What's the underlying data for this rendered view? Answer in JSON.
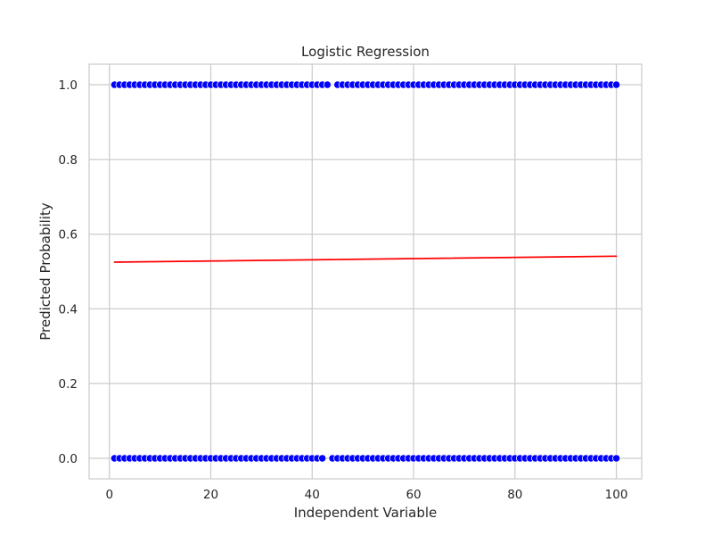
{
  "chart_data": {
    "type": "scatter",
    "title": "Logistic Regression",
    "xlabel": "Independent Variable",
    "ylabel": "Predicted Probability",
    "xlim": [
      -4,
      105
    ],
    "ylim": [
      -0.055,
      1.055
    ],
    "xticks": [
      0,
      20,
      40,
      60,
      80,
      100
    ],
    "xtick_labels": [
      "0",
      "20",
      "40",
      "60",
      "80",
      "100"
    ],
    "yticks": [
      0.0,
      0.2,
      0.4,
      0.6,
      0.8,
      1.0
    ],
    "ytick_labels": [
      "0.0",
      "0.2",
      "0.4",
      "0.6",
      "0.8",
      "1.0"
    ],
    "grid": true,
    "series": [
      {
        "type": "scatter",
        "color": "#0000ff",
        "points": [
          [
            1,
            0
          ],
          [
            1,
            1
          ],
          [
            2,
            0
          ],
          [
            2,
            1
          ],
          [
            3,
            0
          ],
          [
            3,
            1
          ],
          [
            4,
            0
          ],
          [
            4,
            1
          ],
          [
            5,
            0
          ],
          [
            5,
            1
          ],
          [
            6,
            0
          ],
          [
            6,
            1
          ],
          [
            7,
            0
          ],
          [
            7,
            1
          ],
          [
            8,
            0
          ],
          [
            8,
            1
          ],
          [
            9,
            0
          ],
          [
            9,
            1
          ],
          [
            10,
            0
          ],
          [
            10,
            1
          ],
          [
            11,
            0
          ],
          [
            11,
            1
          ],
          [
            12,
            0
          ],
          [
            12,
            1
          ],
          [
            13,
            0
          ],
          [
            13,
            1
          ],
          [
            14,
            0
          ],
          [
            14,
            1
          ],
          [
            15,
            0
          ],
          [
            15,
            1
          ],
          [
            16,
            0
          ],
          [
            16,
            1
          ],
          [
            17,
            0
          ],
          [
            17,
            1
          ],
          [
            18,
            0
          ],
          [
            18,
            1
          ],
          [
            19,
            0
          ],
          [
            19,
            1
          ],
          [
            20,
            0
          ],
          [
            20,
            1
          ],
          [
            21,
            0
          ],
          [
            21,
            1
          ],
          [
            22,
            0
          ],
          [
            22,
            1
          ],
          [
            23,
            0
          ],
          [
            23,
            1
          ],
          [
            24,
            0
          ],
          [
            24,
            1
          ],
          [
            25,
            0
          ],
          [
            25,
            1
          ],
          [
            26,
            0
          ],
          [
            26,
            1
          ],
          [
            27,
            0
          ],
          [
            27,
            1
          ],
          [
            28,
            0
          ],
          [
            28,
            1
          ],
          [
            29,
            0
          ],
          [
            29,
            1
          ],
          [
            30,
            0
          ],
          [
            30,
            1
          ],
          [
            31,
            0
          ],
          [
            31,
            1
          ],
          [
            32,
            0
          ],
          [
            32,
            1
          ],
          [
            33,
            0
          ],
          [
            33,
            1
          ],
          [
            34,
            0
          ],
          [
            34,
            1
          ],
          [
            35,
            0
          ],
          [
            35,
            1
          ],
          [
            36,
            0
          ],
          [
            36,
            1
          ],
          [
            37,
            0
          ],
          [
            37,
            1
          ],
          [
            38,
            0
          ],
          [
            38,
            1
          ],
          [
            39,
            0
          ],
          [
            39,
            1
          ],
          [
            40,
            0
          ],
          [
            40,
            1
          ],
          [
            41,
            0
          ],
          [
            41,
            1
          ],
          [
            42,
            0
          ],
          [
            42,
            1
          ],
          [
            43,
            1
          ],
          [
            44,
            0
          ],
          [
            45,
            0
          ],
          [
            45,
            1
          ],
          [
            46,
            0
          ],
          [
            46,
            1
          ],
          [
            47,
            0
          ],
          [
            47,
            1
          ],
          [
            48,
            0
          ],
          [
            48,
            1
          ],
          [
            49,
            0
          ],
          [
            49,
            1
          ],
          [
            50,
            0
          ],
          [
            50,
            1
          ],
          [
            51,
            0
          ],
          [
            51,
            1
          ],
          [
            52,
            0
          ],
          [
            52,
            1
          ],
          [
            53,
            0
          ],
          [
            53,
            1
          ],
          [
            54,
            0
          ],
          [
            54,
            1
          ],
          [
            55,
            0
          ],
          [
            55,
            1
          ],
          [
            56,
            0
          ],
          [
            56,
            1
          ],
          [
            57,
            0
          ],
          [
            57,
            1
          ],
          [
            58,
            0
          ],
          [
            58,
            1
          ],
          [
            59,
            0
          ],
          [
            59,
            1
          ],
          [
            60,
            0
          ],
          [
            60,
            1
          ],
          [
            61,
            0
          ],
          [
            61,
            1
          ],
          [
            62,
            0
          ],
          [
            62,
            1
          ],
          [
            63,
            0
          ],
          [
            63,
            1
          ],
          [
            64,
            0
          ],
          [
            64,
            1
          ],
          [
            65,
            0
          ],
          [
            65,
            1
          ],
          [
            66,
            0
          ],
          [
            66,
            1
          ],
          [
            67,
            0
          ],
          [
            67,
            1
          ],
          [
            68,
            0
          ],
          [
            68,
            1
          ],
          [
            69,
            0
          ],
          [
            69,
            1
          ],
          [
            70,
            0
          ],
          [
            70,
            1
          ],
          [
            71,
            0
          ],
          [
            71,
            1
          ],
          [
            72,
            0
          ],
          [
            72,
            1
          ],
          [
            73,
            0
          ],
          [
            73,
            1
          ],
          [
            74,
            0
          ],
          [
            74,
            1
          ],
          [
            75,
            0
          ],
          [
            75,
            1
          ],
          [
            76,
            0
          ],
          [
            76,
            1
          ],
          [
            77,
            0
          ],
          [
            77,
            1
          ],
          [
            78,
            0
          ],
          [
            78,
            1
          ],
          [
            79,
            0
          ],
          [
            79,
            1
          ],
          [
            80,
            0
          ],
          [
            80,
            1
          ],
          [
            81,
            0
          ],
          [
            81,
            1
          ],
          [
            82,
            0
          ],
          [
            82,
            1
          ],
          [
            83,
            0
          ],
          [
            83,
            1
          ],
          [
            84,
            0
          ],
          [
            84,
            1
          ],
          [
            85,
            0
          ],
          [
            85,
            1
          ],
          [
            86,
            0
          ],
          [
            86,
            1
          ],
          [
            87,
            0
          ],
          [
            87,
            1
          ],
          [
            88,
            0
          ],
          [
            88,
            1
          ],
          [
            89,
            0
          ],
          [
            89,
            1
          ],
          [
            90,
            0
          ],
          [
            90,
            1
          ],
          [
            91,
            0
          ],
          [
            91,
            1
          ],
          [
            92,
            0
          ],
          [
            92,
            1
          ],
          [
            93,
            0
          ],
          [
            93,
            1
          ],
          [
            94,
            0
          ],
          [
            94,
            1
          ],
          [
            95,
            0
          ],
          [
            95,
            1
          ],
          [
            96,
            0
          ],
          [
            96,
            1
          ],
          [
            97,
            0
          ],
          [
            97,
            1
          ],
          [
            98,
            0
          ],
          [
            98,
            1
          ],
          [
            99,
            0
          ],
          [
            99,
            1
          ],
          [
            100,
            0
          ],
          [
            100,
            1
          ]
        ]
      },
      {
        "type": "line",
        "color": "#ff0000",
        "x": [
          1,
          100
        ],
        "y": [
          0.525,
          0.541
        ]
      }
    ]
  }
}
